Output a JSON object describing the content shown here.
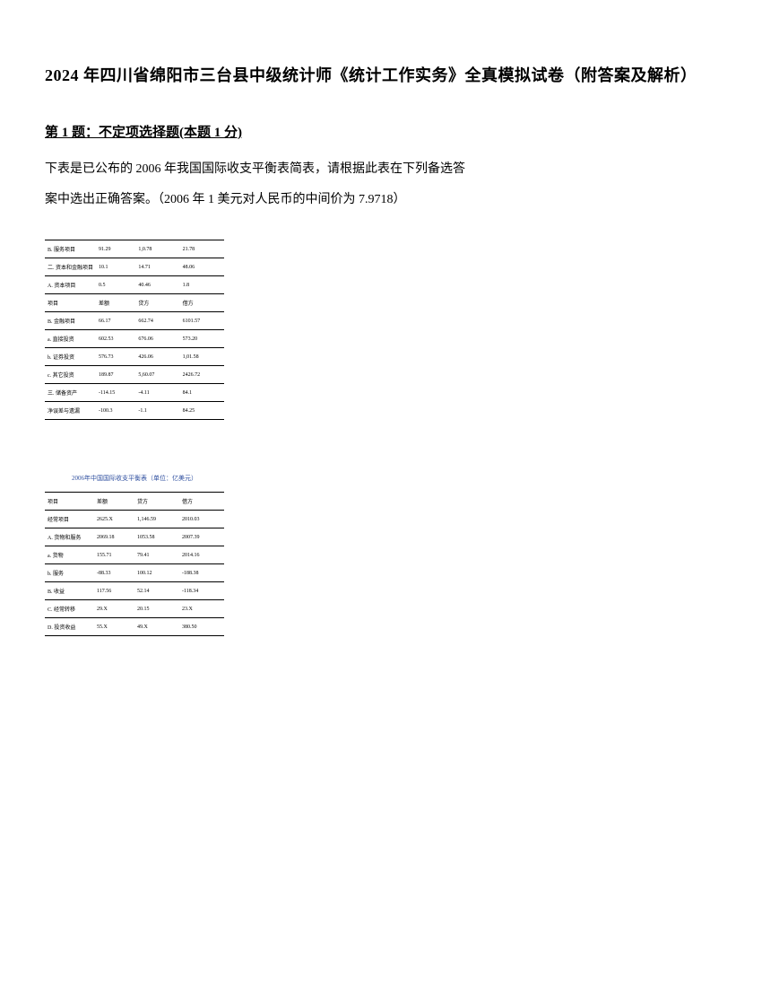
{
  "title": "2024 年四川省绵阳市三台县中级统计师《统计工作实务》全真模拟试卷（附答案及解析）",
  "question": {
    "header": "第 1 题：不定项选择题(本题 1 分)",
    "line1": "下表是已公布的 2006 年我国国际收支平衡表简表，请根据此表在下列备选答",
    "line2": "案中选出正确答案。（2006 年 1 美元对人民币的中间价为 7.9718）"
  },
  "table1": {
    "rows": [
      [
        "B. 服务项目",
        "91.29",
        "1,0.78",
        "21.78"
      ],
      [
        "二. 资本和金融项目",
        "10.1",
        "14.71",
        "48.06"
      ],
      [
        "A. 资本项目",
        "0.5",
        "40.46",
        "1.8"
      ],
      [
        "项目",
        "差额",
        "贷方",
        "借方"
      ],
      [
        "B. 金融项目",
        "66.17",
        "662.74",
        "6101.57"
      ],
      [
        "a. 直接投资",
        "602.53",
        "676.06",
        "573.20"
      ],
      [
        "b. 证券投资",
        "576.73",
        "426.06",
        "1,01.58"
      ],
      [
        "c. 其它投资",
        "189.87",
        "5,60.07",
        "2426.72"
      ],
      [
        "三. 储备资产",
        "-114.15",
        "-4.11",
        "84.1"
      ],
      [
        "净误差与遗漏",
        "-100.3",
        "-1.1",
        "84.25"
      ]
    ]
  },
  "table2": {
    "caption": "2006年中国国际收支平衡表（单位：亿美元）",
    "rows": [
      [
        "项目",
        "差额",
        "贷方",
        "借方"
      ],
      [
        "经常项目",
        "2625.X",
        "1,146.59",
        "2010.03"
      ],
      [
        "A. 货物和服务",
        "2069.18",
        "1053.58",
        "2007.39"
      ],
      [
        "a. 货物",
        "155.71",
        "79.41",
        "2014.16"
      ],
      [
        "b. 服务",
        "-88.33",
        "100.12",
        "-188.38"
      ],
      [
        "B. 收益",
        "117.56",
        "52.14",
        "-118.34"
      ],
      [
        "C. 经常转移",
        "29.X",
        "20.15",
        "23.X"
      ],
      [
        "D. 投资收益",
        "55.X",
        "49.X",
        "380.50"
      ]
    ]
  }
}
